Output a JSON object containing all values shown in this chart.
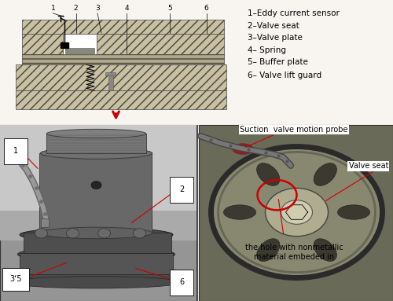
{
  "figure_width": 5.0,
  "figure_height": 3.83,
  "dpi": 100,
  "bg_color": "#ffffff",
  "legend_items": [
    "1–Eddy current sensor",
    "2–Valve seat",
    "3–Valve plate",
    "4– Spring",
    "5– Buffer plate",
    "6– Valve lift guard"
  ],
  "red": "#cc0000",
  "black": "#000000",
  "white": "#ffffff",
  "label_fontsize": 7,
  "legend_fontsize": 7.5
}
